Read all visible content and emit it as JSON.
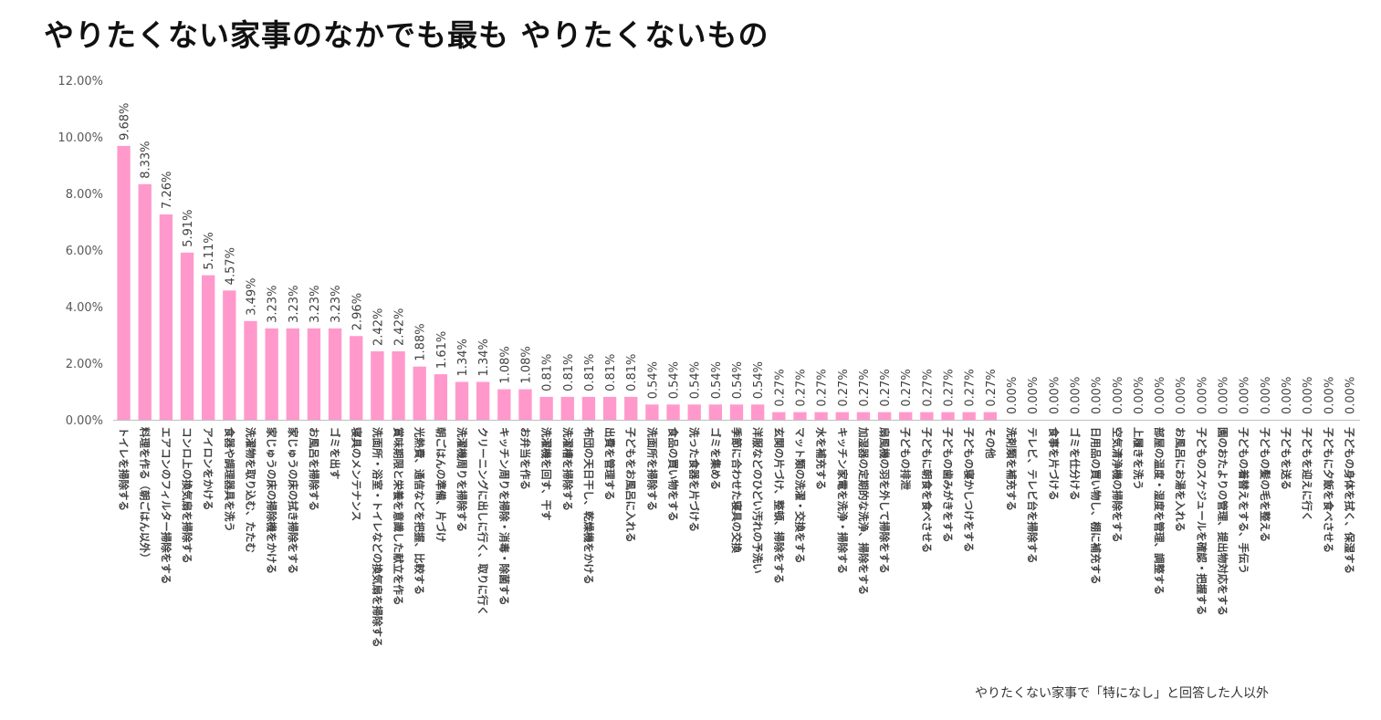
{
  "chart_data": {
    "type": "bar",
    "title": "やりたくない家事のなかでも最も やりたくないもの",
    "note": "やりたくない家事で「特になし」と回答した人以外",
    "xlabel": "",
    "ylabel": "",
    "ylim": [
      0,
      12
    ],
    "yticks": [
      "0.00%",
      "2.00%",
      "4.00%",
      "6.00%",
      "8.00%",
      "10.00%",
      "12.00%"
    ],
    "bar_color": "#ff99cc",
    "grid": false,
    "categories": [
      "トイレを掃除する",
      "料理を作る（朝ごはん以外）",
      "エアコンのフィルター掃除をする",
      "コンロ上の換気扇を掃除する",
      "アイロンをかける",
      "食器や調理器具を洗う",
      "洗濯物を取り込む、たたむ",
      "家じゅうの床の掃除機をかける",
      "家じゅうの床の拭き掃除をする",
      "お風呂を掃除する",
      "ゴミを出す",
      "寝具のメンテナンス",
      "洗面所・浴室・トイレなどの換気扇を掃除する",
      "賞味期限と栄養を意識した献立を作る",
      "光熱費、通信などを把握、比較する",
      "朝ごはんの準備、片づけ",
      "洗濯機周りを掃除する",
      "クリーニングに出しに行く、取りに行く",
      "キッチン周りを掃除・消毒・除菌する",
      "お弁当を作る",
      "洗濯機を回す、干す",
      "洗濯槽を掃除する",
      "布団の天日干し、乾燥機をかける",
      "出費を管理する",
      "子どもをお風呂に入れる",
      "洗面所を掃除する",
      "食品の買い物をする",
      "洗った食器を片づける",
      "ゴミを集める",
      "季節に合わせた寝具の交換",
      "洋服などのひどい汚れの予洗い",
      "玄関の片づけ、整頓、掃除をする",
      "マット類の洗濯・交換をする",
      "水を補充する",
      "キッチン家電を洗浄・掃除する",
      "加湿器の定期的な洗浄、掃除をする",
      "扇風機の羽を外して掃除をする",
      "子どもの排泄",
      "子どもに朝食を食べさせる",
      "子どもの歯みがきをする",
      "子どもの寝かしつけをする",
      "その他",
      "洗剤類を補充する",
      "テレビ、テレビ台を掃除する",
      "食事を片づける",
      "ゴミを仕分ける",
      "日用品の買い物し、棚に補充する",
      "空気清浄機の掃除をする",
      "上履きを洗う",
      "部屋の温度・湿度を管理、調整する",
      "お風呂にお湯を入れる",
      "子どものスケジュールを確認・把握する",
      "園のおたよりの管理、提出物対応をする",
      "子どもの着替えをする、手伝う",
      "子どもの髪の毛を整える",
      "子どもを送る",
      "子どもを迎えに行く",
      "子どもに夕飯を食べさせる",
      "子どもの身体を拭く、保湿する"
    ],
    "values": [
      9.68,
      8.33,
      7.26,
      5.91,
      5.11,
      4.57,
      3.49,
      3.23,
      3.23,
      3.23,
      3.23,
      2.96,
      2.42,
      2.42,
      1.88,
      1.61,
      1.34,
      1.34,
      1.08,
      1.08,
      0.81,
      0.81,
      0.81,
      0.81,
      0.81,
      0.54,
      0.54,
      0.54,
      0.54,
      0.54,
      0.54,
      0.27,
      0.27,
      0.27,
      0.27,
      0.27,
      0.27,
      0.27,
      0.27,
      0.27,
      0.27,
      0.27,
      0,
      0,
      0,
      0,
      0,
      0,
      0,
      0,
      0,
      0,
      0,
      0,
      0,
      0,
      0,
      0,
      0
    ],
    "data_labels": [
      "9.68%",
      "8.33%",
      "7.26%",
      "5.91%",
      "5.11%",
      "4.57%",
      "3.49%",
      "3.23%",
      "3.23%",
      "3.23%",
      "3.23%",
      "2.96%",
      "2.42%",
      "2.42%",
      "1.88%",
      "1.61%",
      "1.34%",
      "1.34%",
      "1.08%",
      "1.08%",
      "0.81%",
      "0.81%",
      "0.81%",
      "0.81%",
      "0.81%",
      "0.54%",
      "0.54%",
      "0.54%",
      "0.54%",
      "0.54%",
      "0.54%",
      "0.27%",
      "0.27%",
      "0.27%",
      "0.27%",
      "0.27%",
      "0.27%",
      "0.27%",
      "0.27%",
      "0.27%",
      "0.27%",
      "0.27%",
      "0.00%",
      "0.00%",
      "0.00%",
      "0.00%",
      "0.00%",
      "0.00%",
      "0.00%",
      "0.00%",
      "0.00%",
      "0.00%",
      "0.00%",
      "0.00%",
      "0.00%",
      "0.00%",
      "0.00%",
      "0.00%",
      "0.00%"
    ]
  }
}
